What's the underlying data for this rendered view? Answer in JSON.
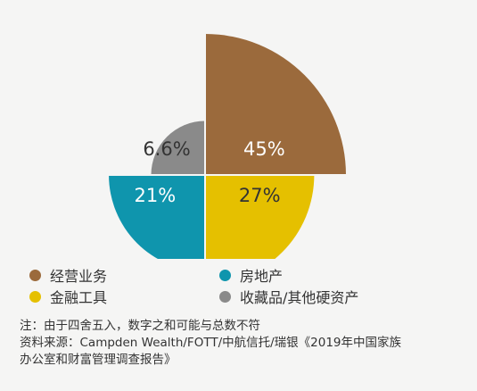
{
  "chart_data": {
    "type": "pie",
    "variant": "polar-area (radius varies per slice)",
    "title": "",
    "slices": [
      {
        "label": "经营业务",
        "value": 45,
        "display": "45%",
        "color": "#9b6a3c"
      },
      {
        "label": "金融工具",
        "value": 27,
        "display": "27%",
        "color": "#e5c000"
      },
      {
        "label": "房地产",
        "value": 21,
        "display": "21%",
        "color": "#0f95ad"
      },
      {
        "label": "收藏品/其他硬资产",
        "value": 6.6,
        "display": "6.6%",
        "color": "#8a8a8a"
      }
    ],
    "legend_placement": "bottom",
    "grid": false
  },
  "legend": {
    "items": [
      {
        "label": "经营业务",
        "color": "#9b6a3c"
      },
      {
        "label": "房地产",
        "color": "#0f95ad"
      },
      {
        "label": "金融工具",
        "color": "#e5c000"
      },
      {
        "label": "收藏品/其他硬资产",
        "color": "#8a8a8a"
      }
    ]
  },
  "notes": {
    "line1": "注：由于四舍五入，数字之和可能与总数不符",
    "line2": "资料来源：Campden Wealth/FOTT/中航信托/瑞银《2019年中国家族",
    "line3": "办公室和财富管理调查报告》"
  }
}
